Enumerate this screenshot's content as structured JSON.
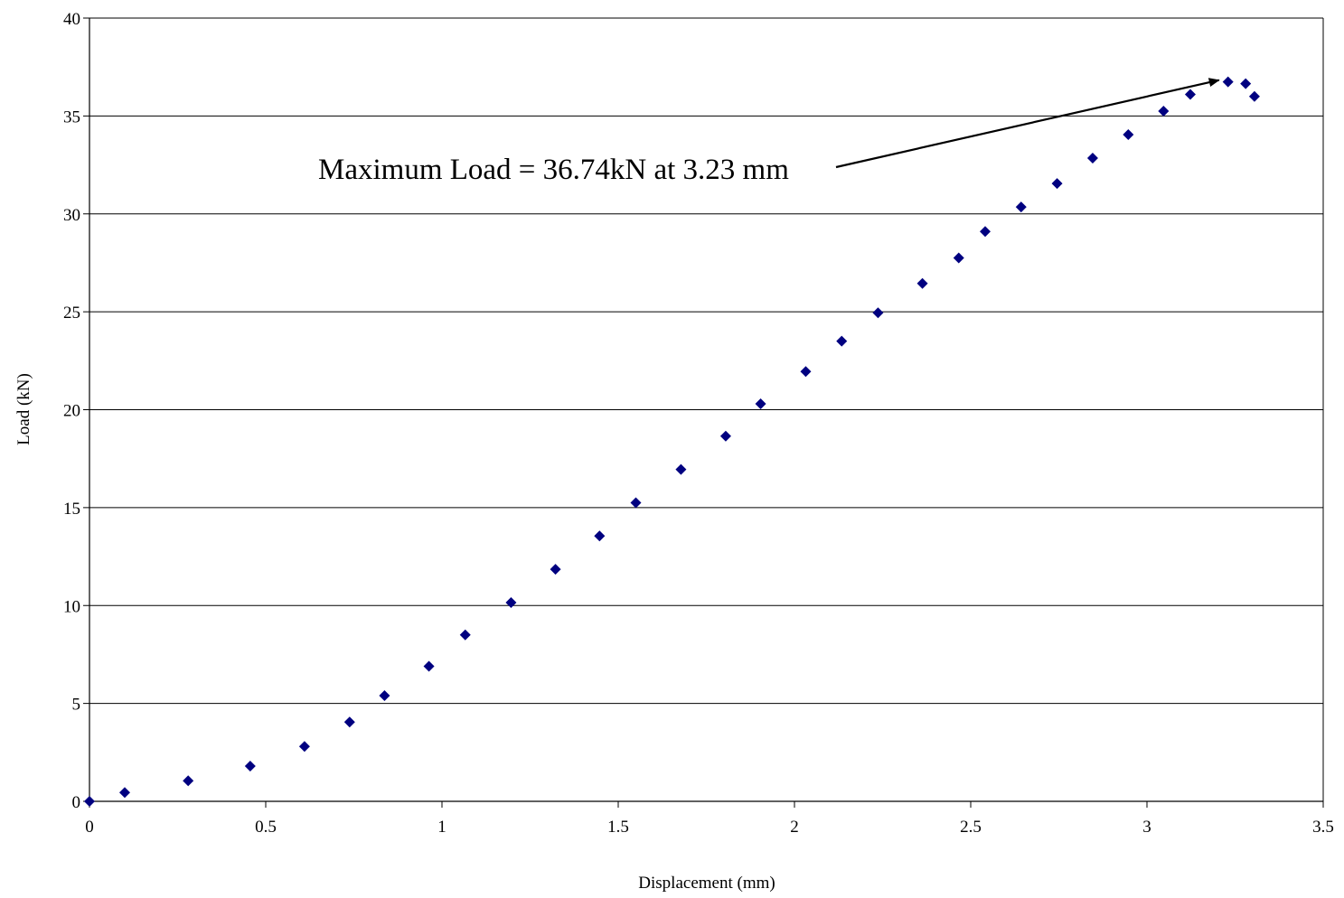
{
  "chart_data": {
    "type": "scatter",
    "title": "",
    "xlabel": "Displacement (mm)",
    "ylabel": "Load (kN)",
    "xlim": [
      0,
      3.5
    ],
    "ylim": [
      0,
      40
    ],
    "xticks": [
      "0",
      "0.5",
      "1",
      "1.5",
      "2",
      "2.5",
      "3",
      "3.5"
    ],
    "yticks": [
      "0",
      "5",
      "10",
      "15",
      "20",
      "25",
      "30",
      "35",
      "40"
    ],
    "grid": "horizontal",
    "legend": "none",
    "marker_color": "#000080",
    "series": [
      {
        "x": [
          0,
          0.1,
          0.28,
          0.456,
          0.61,
          0.738,
          0.837,
          0.963,
          1.066,
          1.196,
          1.322,
          1.447,
          1.55,
          1.678,
          1.805,
          1.904,
          2.032,
          2.134,
          2.237,
          2.363,
          2.466,
          2.541,
          2.643,
          2.745,
          2.846,
          2.947,
          3.047,
          3.123,
          3.23,
          3.28,
          3.305
        ],
        "y": [
          0,
          0.45,
          1.05,
          1.8,
          2.8,
          4.05,
          5.4,
          6.9,
          8.5,
          10.15,
          11.85,
          13.55,
          15.25,
          16.95,
          18.65,
          20.3,
          21.95,
          23.5,
          24.95,
          26.45,
          27.75,
          29.1,
          30.35,
          31.55,
          32.85,
          34.05,
          35.25,
          36.1,
          36.74,
          36.65,
          36.0
        ]
      }
    ],
    "annotation": {
      "text": "Maximum Load = 36.74kN at 3.23 mm",
      "point": [
        3.23,
        36.74
      ]
    }
  }
}
